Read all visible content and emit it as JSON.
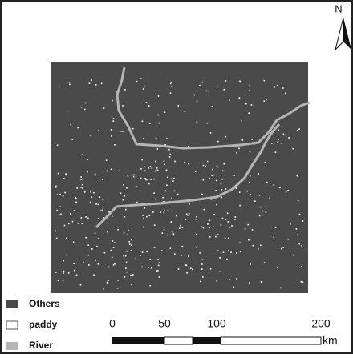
{
  "north": "N",
  "legend": [
    {
      "label": "Others"
    },
    {
      "label": "paddy"
    },
    {
      "label": "River"
    }
  ],
  "scale": {
    "ticks": [
      0,
      50,
      100,
      200
    ],
    "unit": "km"
  }
}
